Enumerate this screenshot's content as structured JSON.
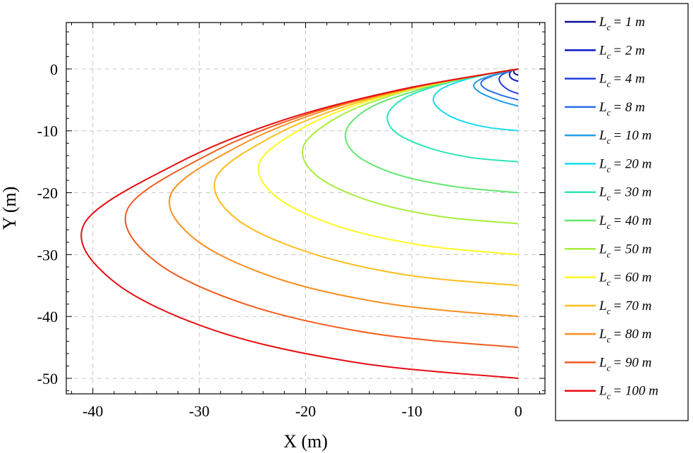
{
  "chart_data": {
    "type": "line",
    "title": "",
    "xlabel": "X (m)",
    "ylabel": "Y (m)",
    "xlim": [
      -42.5,
      2.5
    ],
    "ylim": [
      -52.5,
      7.5
    ],
    "xticks": [
      -40,
      -30,
      -20,
      -10,
      0
    ],
    "yticks": [
      0,
      -10,
      -20,
      -30,
      -40,
      -50
    ],
    "xtick_labels": [
      "-40",
      "-30",
      "-20",
      "-10",
      "0"
    ],
    "ytick_labels": [
      "0",
      "-10",
      "-20",
      "-30",
      "-40",
      "-50"
    ],
    "grid": true,
    "legend_position": "right-outside",
    "legend_prefix": "L",
    "legend_subscript": "c",
    "series": [
      {
        "name": "= 1 m",
        "Lc": 1,
        "color": "#0a0a9e",
        "x": [
          0,
          -0.27,
          -0.41,
          -0.43,
          -0.39,
          -0.28,
          0
        ],
        "y": [
          0,
          -0.1,
          -0.25,
          -0.5,
          -0.65,
          -0.82,
          -1
        ]
      },
      {
        "name": "= 2 m",
        "Lc": 2,
        "color": "#0d17c8",
        "x": [
          0,
          -0.52,
          -0.78,
          -0.83,
          -0.75,
          -0.5,
          0
        ],
        "y": [
          0,
          -0.2,
          -0.55,
          -1.0,
          -1.35,
          -1.7,
          -2
        ]
      },
      {
        "name": "= 4 m",
        "Lc": 4,
        "color": "#1d3fe0",
        "x": [
          0,
          -0.75,
          -1.45,
          -1.8,
          -1.7,
          -1.4,
          -0.8,
          0
        ],
        "y": [
          0,
          -0.35,
          -0.85,
          -1.5,
          -2.2,
          -2.8,
          -3.5,
          -4
        ]
      },
      {
        "name": "= 8 m",
        "Lc": 8,
        "color": "#2a6ce8",
        "x": [
          0,
          -1.2,
          -2.4,
          -3.3,
          -3.5,
          -3.0,
          -2.0,
          -1.0,
          0
        ],
        "y": [
          0,
          -0.5,
          -1.1,
          -1.8,
          -2.5,
          -3.3,
          -4.0,
          -4.55,
          -5
        ]
      },
      {
        "name": "= 10 m",
        "Lc": 10,
        "color": "#1e9de6",
        "x": [
          0,
          -1.5,
          -2.8,
          -3.8,
          -4.2,
          -3.7,
          -2.6,
          -1.3,
          0
        ],
        "y": [
          0,
          -0.6,
          -1.2,
          -1.9,
          -2.7,
          -3.7,
          -4.6,
          -5.4,
          -6
        ]
      },
      {
        "name": "= 20 m",
        "Lc": 20,
        "color": "#15dcf0",
        "x": [
          0,
          -3.0,
          -5.5,
          -7.3,
          -8.0,
          -7.2,
          -5.5,
          -3.0,
          0
        ],
        "y": [
          0,
          -0.9,
          -2.0,
          -3.3,
          -5.0,
          -6.8,
          -8.3,
          -9.4,
          -10
        ]
      },
      {
        "name": "= 30 m",
        "Lc": 30,
        "color": "#2fe6b4",
        "x": [
          0,
          -4.0,
          -7.8,
          -10.8,
          -12.3,
          -11.5,
          -8.5,
          -4.5,
          0
        ],
        "y": [
          0,
          -1.2,
          -2.8,
          -4.8,
          -7.5,
          -10.3,
          -12.7,
          -14.3,
          -15
        ]
      },
      {
        "name": "= 40 m",
        "Lc": 40,
        "color": "#64e670",
        "x": [
          0,
          -5.0,
          -9.8,
          -14.0,
          -16.2,
          -15.3,
          -11.5,
          -6.0,
          0
        ],
        "y": [
          0,
          -1.5,
          -3.6,
          -6.3,
          -10.0,
          -13.8,
          -17.0,
          -19.0,
          -20
        ]
      },
      {
        "name": "= 50 m",
        "Lc": 50,
        "color": "#a8ee3c",
        "x": [
          0,
          -6.0,
          -12.0,
          -17.0,
          -20.2,
          -19.0,
          -14.2,
          -7.5,
          0
        ],
        "y": [
          0,
          -1.8,
          -4.3,
          -7.8,
          -12.5,
          -17.2,
          -21.2,
          -23.8,
          -25
        ]
      },
      {
        "name": "= 60 m",
        "Lc": 60,
        "color": "#fdfa1e",
        "x": [
          0,
          -7.0,
          -14.0,
          -20.0,
          -24.3,
          -22.8,
          -17.0,
          -9.0,
          0
        ],
        "y": [
          0,
          -2.1,
          -5.1,
          -9.3,
          -15.0,
          -20.6,
          -25.4,
          -28.5,
          -30
        ]
      },
      {
        "name": "= 70 m",
        "Lc": 70,
        "color": "#fdbd1a",
        "x": [
          0,
          -8.0,
          -16.0,
          -23.0,
          -28.4,
          -26.6,
          -19.8,
          -10.5,
          0
        ],
        "y": [
          0,
          -2.4,
          -5.9,
          -10.8,
          -17.5,
          -24.1,
          -29.6,
          -33.3,
          -35
        ]
      },
      {
        "name": "= 80 m",
        "Lc": 80,
        "color": "#fa8e1e",
        "x": [
          0,
          -9.0,
          -18.0,
          -26.0,
          -32.6,
          -30.4,
          -22.6,
          -12.0,
          0
        ],
        "y": [
          0,
          -2.7,
          -6.6,
          -12.2,
          -20.0,
          -27.5,
          -33.9,
          -38.0,
          -40
        ]
      },
      {
        "name": "= 90 m",
        "Lc": 90,
        "color": "#f45a1c",
        "x": [
          0,
          -10.0,
          -20.0,
          -29.0,
          -36.7,
          -34.2,
          -25.5,
          -13.5,
          0
        ],
        "y": [
          0,
          -3.0,
          -7.4,
          -13.7,
          -22.5,
          -31.0,
          -38.1,
          -42.8,
          -45
        ]
      },
      {
        "name": "= 100 m",
        "Lc": 100,
        "color": "#e60c10",
        "x": [
          0,
          -11.0,
          -22.0,
          -32.0,
          -40.8,
          -38.0,
          -28.3,
          -15.0,
          0
        ],
        "y": [
          0,
          -3.3,
          -8.2,
          -15.2,
          -25.0,
          -34.4,
          -42.4,
          -47.5,
          -50
        ]
      }
    ]
  }
}
